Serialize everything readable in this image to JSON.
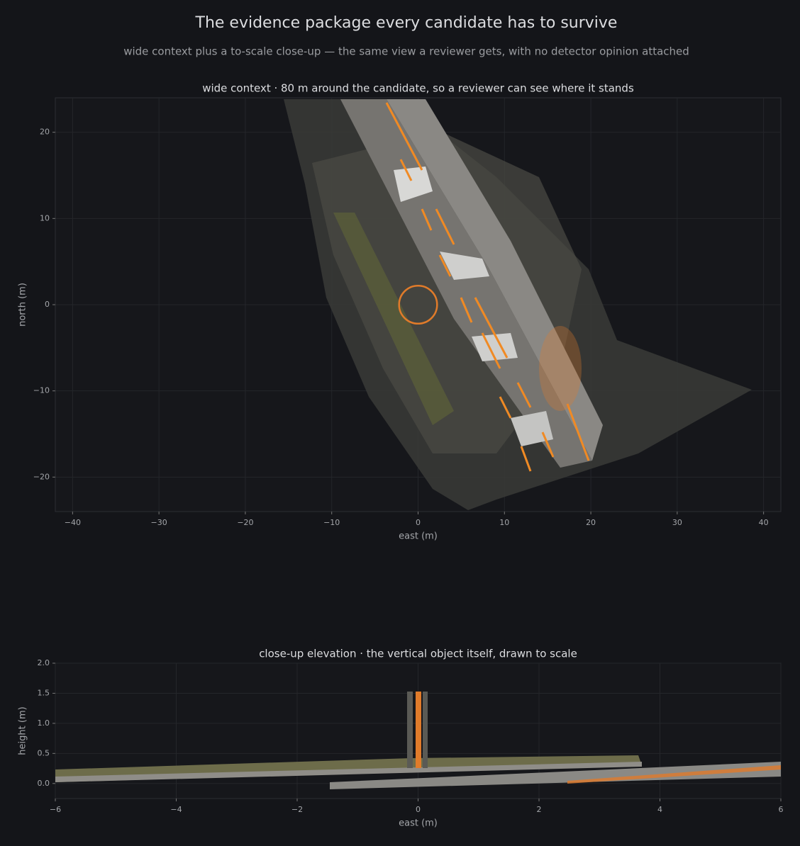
{
  "title": "The evidence package every candidate has to survive",
  "subtitle": "wide context plus a to-scale close-up — the same view a reviewer gets, with no detector opinion attached",
  "chart_data": [
    {
      "type": "scatter",
      "title": "wide context · 80 m around the candidate, so a reviewer can see where it stands",
      "xlabel": "east (m)",
      "ylabel": "north (m)",
      "xlim": [
        -42,
        42
      ],
      "ylim": [
        -24,
        24
      ],
      "xticks": [
        {
          "value": -40,
          "label": "−40"
        },
        {
          "value": -30,
          "label": "−30"
        },
        {
          "value": -20,
          "label": "−20"
        },
        {
          "value": -10,
          "label": "−10"
        },
        0,
        10,
        20,
        30,
        40
      ],
      "yticks": [
        {
          "value": -20,
          "label": "−20"
        },
        {
          "value": -10,
          "label": "−10"
        },
        0,
        10,
        20
      ],
      "grid": true,
      "marker": {
        "x": 0,
        "y": 0,
        "radius": 2.2,
        "color": "#e07b2a"
      }
    },
    {
      "type": "scatter",
      "title": "close-up elevation · the vertical object itself, drawn to scale",
      "xlabel": "east (m)",
      "ylabel": "height (m)",
      "xlim": [
        -6,
        6
      ],
      "ylim": [
        -0.25,
        2.0
      ],
      "xticks": [
        {
          "value": -6,
          "label": "−6"
        },
        {
          "value": -4,
          "label": "−4"
        },
        {
          "value": -2,
          "label": "−2"
        },
        0,
        2,
        4,
        6
      ],
      "yticks": [
        {
          "value": 0,
          "label": "0.0"
        },
        0.5,
        {
          "value": 1,
          "label": "1.0"
        },
        1.5,
        {
          "value": 2,
          "label": "2.0"
        }
      ],
      "grid": true
    }
  ]
}
